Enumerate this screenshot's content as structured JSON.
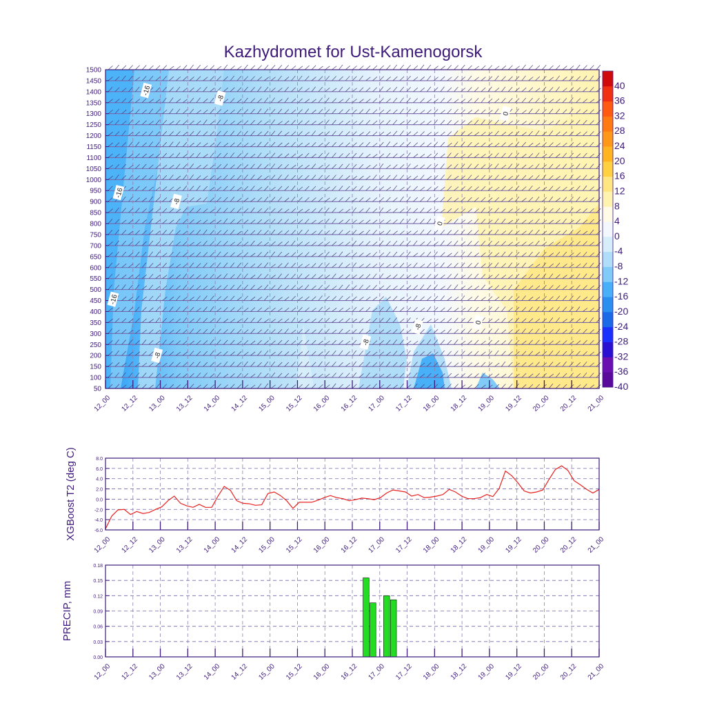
{
  "title": "Kazhydromet for Ust-Kamenogorsk",
  "colors": {
    "axis": "#3d1a7a",
    "grid": "#7766aa",
    "barb": "#4a3a7a",
    "t2_line": "#e8201e",
    "precip_fill": "#22dd22"
  },
  "time_labels": [
    "12_00",
    "12_12",
    "13_00",
    "13_12",
    "14_00",
    "14_12",
    "15_00",
    "15_12",
    "16_00",
    "16_12",
    "17_00",
    "17_12",
    "18_00",
    "18_12",
    "19_00",
    "19_12",
    "20_00",
    "20_12",
    "21_00"
  ],
  "chart_data": [
    {
      "type": "heatmap",
      "name": "cross-section",
      "y_ticks": [
        50,
        100,
        150,
        200,
        250,
        300,
        350,
        400,
        450,
        500,
        550,
        600,
        650,
        700,
        750,
        800,
        850,
        900,
        950,
        1000,
        1050,
        1100,
        1150,
        1200,
        1250,
        1300,
        1350,
        1400,
        1450,
        1500
      ],
      "ylim": [
        50,
        1500
      ],
      "contour_labels": [
        {
          "text": "-16",
          "t": 1.5,
          "y": 1405
        },
        {
          "text": "-8",
          "t": 4.2,
          "y": 1370
        },
        {
          "text": "-16",
          "t": 0.5,
          "y": 940
        },
        {
          "text": "-8",
          "t": 2.6,
          "y": 900
        },
        {
          "text": "-16",
          "t": 0.3,
          "y": 455
        },
        {
          "text": "-8",
          "t": 1.9,
          "y": 200
        },
        {
          "text": "0",
          "t": 14.6,
          "y": 1300
        },
        {
          "text": "0",
          "t": 12.2,
          "y": 800
        },
        {
          "text": "0",
          "t": 13.6,
          "y": 350
        },
        {
          "text": "-8",
          "t": 9.5,
          "y": 260
        },
        {
          "text": "-8",
          "t": 11.4,
          "y": 330
        }
      ],
      "colorbar": {
        "labels": [
          "40",
          "36",
          "32",
          "28",
          "24",
          "20",
          "16",
          "12",
          "8",
          "4",
          "0",
          "-4",
          "-8",
          "-12",
          "-16",
          "-20",
          "-24",
          "-28",
          "-32",
          "-36",
          "-40"
        ],
        "colors": [
          "#5a0a9a",
          "#6a10b0",
          "#2a10d0",
          "#1a30ff",
          "#1a6ae8",
          "#2a90f0",
          "#48b0f8",
          "#80cbf8",
          "#b0def8",
          "#d6eefa",
          "#f2f8fe",
          "#fffbe6",
          "#fff3b0",
          "#ffe680",
          "#ffd040",
          "#ffb420",
          "#ff9818",
          "#ff7a10",
          "#ff5a10",
          "#f03010",
          "#d00a0a"
        ]
      }
    },
    {
      "type": "line",
      "name": "T2",
      "ylabel": "XGBoost T2 (deg C)",
      "ylim": [
        -6,
        8
      ],
      "y_ticks": [
        "8.0",
        "6.0",
        "4.0",
        "2.0",
        "0.0",
        "-2.0",
        "-4.0",
        "-6.0"
      ],
      "values": [
        -5.8,
        -3.3,
        -2.1,
        -2.0,
        -3.0,
        -2.4,
        -2.8,
        -2.6,
        -2.0,
        -1.5,
        -0.3,
        0.6,
        -0.8,
        -1.3,
        -1.6,
        -1.0,
        -1.6,
        -1.6,
        0.6,
        2.5,
        1.7,
        -0.3,
        -0.8,
        -0.9,
        -1.2,
        -1.1,
        1.1,
        1.4,
        0.7,
        -0.3,
        -1.8,
        -0.6,
        -0.6,
        -0.6,
        -0.2,
        0.3,
        0.7,
        0.3,
        0.1,
        -0.3,
        -0.1,
        0.2,
        0.1,
        -0.1,
        0.3,
        1.2,
        1.8,
        1.6,
        1.4,
        0.6,
        0.9,
        0.3,
        0.4,
        0.6,
        0.9,
        1.9,
        1.4,
        0.6,
        0.1,
        0.1,
        0.3,
        0.9,
        0.5,
        2.1,
        5.5,
        4.6,
        3.2,
        1.6,
        1.2,
        1.4,
        1.8,
        3.9,
        5.8,
        6.5,
        5.6,
        3.6,
        2.8,
        1.9,
        1.2,
        1.9
      ]
    },
    {
      "type": "bar",
      "name": "PRECIP",
      "ylabel": "PRECIP, mm",
      "ylim": [
        0,
        0.18
      ],
      "y_ticks": [
        "0.18",
        "0.15",
        "0.12",
        "0.09",
        "0.06",
        "0.03",
        "0.00"
      ],
      "bars": [
        {
          "t": 9.5,
          "value": 0.155
        },
        {
          "t": 9.75,
          "value": 0.106
        },
        {
          "t": 10.25,
          "value": 0.12
        },
        {
          "t": 10.5,
          "value": 0.112
        }
      ]
    }
  ]
}
